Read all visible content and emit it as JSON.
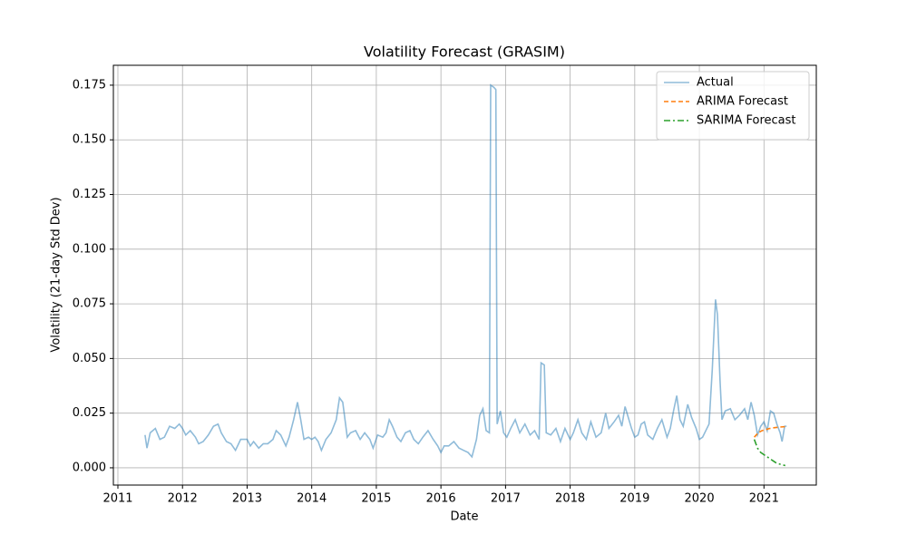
{
  "chart_data": {
    "type": "line",
    "title": "Volatility Forecast (GRASIM)",
    "x_label": "Date",
    "y_label": "Volatility (21-day Std Dev)",
    "xlim": [
      2010.93,
      2021.81
    ],
    "xticks": [
      2011,
      2012,
      2013,
      2014,
      2015,
      2016,
      2017,
      2018,
      2019,
      2020,
      2021
    ],
    "ylim": [
      -0.0079,
      0.1841
    ],
    "yticks": [
      {
        "value": 0,
        "label": "0.000"
      },
      {
        "value": 0.025,
        "label": "0.025"
      },
      {
        "value": 0.05,
        "label": "0.050"
      },
      {
        "value": 0.075,
        "label": "0.075"
      },
      {
        "value": 0.1,
        "label": "0.100"
      },
      {
        "value": 0.125,
        "label": "0.125"
      },
      {
        "value": 0.15,
        "label": "0.150"
      },
      {
        "value": 0.175,
        "label": "0.175"
      }
    ],
    "grid": true,
    "legend": "upper right",
    "series": [
      {
        "name": "Actual",
        "color": "#1f77b4",
        "alpha": 0.5,
        "linestyle": "-",
        "x": [
          2011.42,
          2011.45,
          2011.5,
          2011.58,
          2011.65,
          2011.72,
          2011.8,
          2011.88,
          2011.95,
          2012.0,
          2012.05,
          2012.12,
          2012.2,
          2012.25,
          2012.32,
          2012.4,
          2012.48,
          2012.55,
          2012.6,
          2012.68,
          2012.75,
          2012.82,
          2012.9,
          2013.0,
          2013.05,
          2013.1,
          2013.18,
          2013.25,
          2013.32,
          2013.4,
          2013.45,
          2013.52,
          2013.6,
          2013.65,
          2013.72,
          2013.78,
          2013.83,
          2013.88,
          2013.95,
          2014.0,
          2014.05,
          2014.1,
          2014.15,
          2014.22,
          2014.3,
          2014.38,
          2014.43,
          2014.48,
          2014.55,
          2014.6,
          2014.68,
          2014.75,
          2014.82,
          2014.9,
          2014.95,
          2015.02,
          2015.1,
          2015.15,
          2015.2,
          2015.25,
          2015.32,
          2015.38,
          2015.45,
          2015.52,
          2015.58,
          2015.65,
          2015.72,
          2015.8,
          2015.88,
          2015.95,
          2016.0,
          2016.05,
          2016.12,
          2016.2,
          2016.28,
          2016.35,
          2016.42,
          2016.48,
          2016.55,
          2016.6,
          2016.65,
          2016.7,
          2016.75,
          2016.77,
          2016.82,
          2016.85,
          2016.87,
          2016.92,
          2016.97,
          2017.02,
          2017.08,
          2017.15,
          2017.22,
          2017.3,
          2017.38,
          2017.45,
          2017.52,
          2017.55,
          2017.6,
          2017.63,
          2017.7,
          2017.78,
          2017.85,
          2017.92,
          2018.0,
          2018.05,
          2018.12,
          2018.18,
          2018.25,
          2018.32,
          2018.4,
          2018.48,
          2018.55,
          2018.6,
          2018.68,
          2018.75,
          2018.8,
          2018.85,
          2018.9,
          2018.95,
          2019.0,
          2019.05,
          2019.1,
          2019.15,
          2019.2,
          2019.28,
          2019.35,
          2019.42,
          2019.5,
          2019.55,
          2019.6,
          2019.65,
          2019.7,
          2019.75,
          2019.82,
          2019.88,
          2019.95,
          2020.0,
          2020.05,
          2020.1,
          2020.15,
          2020.2,
          2020.25,
          2020.28,
          2020.32,
          2020.35,
          2020.4,
          2020.48,
          2020.55,
          2020.62,
          2020.7,
          2020.75,
          2020.8,
          2020.85,
          2020.9,
          2020.95,
          2021.0,
          2021.05,
          2021.1,
          2021.15,
          2021.2,
          2021.25,
          2021.28,
          2021.32,
          2021.35
        ],
        "values": [
          0.015,
          0.009,
          0.016,
          0.018,
          0.013,
          0.014,
          0.019,
          0.018,
          0.02,
          0.018,
          0.015,
          0.017,
          0.014,
          0.011,
          0.012,
          0.015,
          0.019,
          0.02,
          0.016,
          0.012,
          0.011,
          0.008,
          0.013,
          0.013,
          0.01,
          0.012,
          0.009,
          0.011,
          0.011,
          0.013,
          0.017,
          0.015,
          0.01,
          0.014,
          0.022,
          0.03,
          0.022,
          0.013,
          0.014,
          0.013,
          0.014,
          0.012,
          0.008,
          0.013,
          0.016,
          0.022,
          0.032,
          0.03,
          0.014,
          0.016,
          0.017,
          0.013,
          0.016,
          0.013,
          0.009,
          0.015,
          0.014,
          0.016,
          0.022,
          0.019,
          0.014,
          0.012,
          0.016,
          0.017,
          0.013,
          0.011,
          0.014,
          0.017,
          0.013,
          0.01,
          0.007,
          0.01,
          0.01,
          0.012,
          0.009,
          0.008,
          0.007,
          0.005,
          0.013,
          0.024,
          0.027,
          0.017,
          0.016,
          0.175,
          0.174,
          0.173,
          0.02,
          0.026,
          0.016,
          0.014,
          0.018,
          0.022,
          0.016,
          0.02,
          0.015,
          0.017,
          0.013,
          0.048,
          0.047,
          0.016,
          0.015,
          0.018,
          0.012,
          0.018,
          0.013,
          0.016,
          0.022,
          0.016,
          0.013,
          0.021,
          0.014,
          0.016,
          0.025,
          0.018,
          0.021,
          0.024,
          0.019,
          0.028,
          0.023,
          0.018,
          0.014,
          0.015,
          0.02,
          0.021,
          0.015,
          0.013,
          0.018,
          0.022,
          0.014,
          0.018,
          0.026,
          0.033,
          0.022,
          0.019,
          0.029,
          0.023,
          0.018,
          0.013,
          0.014,
          0.017,
          0.02,
          0.045,
          0.077,
          0.07,
          0.04,
          0.022,
          0.026,
          0.027,
          0.022,
          0.024,
          0.027,
          0.022,
          0.03,
          0.024,
          0.015,
          0.019,
          0.021,
          0.017,
          0.026,
          0.025,
          0.02,
          0.016,
          0.012,
          0.019,
          0.019
        ]
      },
      {
        "name": "ARIMA Forecast",
        "color": "#ff7f0e",
        "alpha": 1,
        "linestyle": "--",
        "x": [
          2020.85,
          2020.91,
          2020.97,
          2021.03,
          2021.09,
          2021.15,
          2021.21,
          2021.27,
          2021.33
        ],
        "values": [
          0.014,
          0.016,
          0.017,
          0.0175,
          0.018,
          0.0183,
          0.0185,
          0.0187,
          0.0188
        ]
      },
      {
        "name": "SARIMA Forecast",
        "color": "#2ca02c",
        "alpha": 1,
        "linestyle": "-.",
        "x": [
          2020.85,
          2020.9,
          2020.95,
          2021.0,
          2021.05,
          2021.1,
          2021.15,
          2021.2,
          2021.27,
          2021.33
        ],
        "values": [
          0.013,
          0.009,
          0.007,
          0.006,
          0.005,
          0.004,
          0.003,
          0.002,
          0.0015,
          0.001
        ]
      }
    ]
  }
}
